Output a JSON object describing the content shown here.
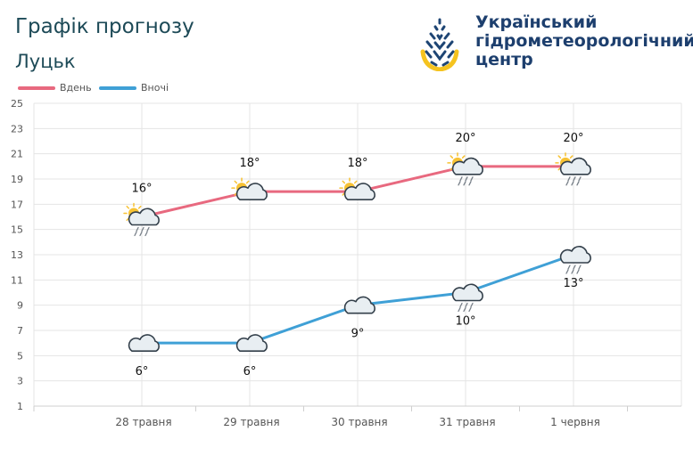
{
  "header": {
    "title": "Графік прогнозу",
    "city": "Луцьк"
  },
  "logo": {
    "line1": "Український",
    "line2": "гідрометеорологічний",
    "line3": "центр"
  },
  "colors": {
    "day": "#e8697f",
    "night": "#3fa0d6",
    "title": "#1d4a57",
    "logo_text": "#1d3f6e",
    "logo_yellow": "#f5c31f",
    "logo_blue": "#1e4574",
    "grid": "#e4e4e4",
    "axis_text": "#555555",
    "sun": "#f7c233",
    "cloud_fill": "#e8eef2",
    "cloud_stroke": "#333f4a",
    "rain": "#777f88"
  },
  "chart_data": {
    "type": "line",
    "categories": [
      "28 травня",
      "29 травня",
      "30 травня",
      "31 травня",
      "1 червня"
    ],
    "ylim": [
      1,
      25
    ],
    "yticks": [
      1,
      3,
      5,
      7,
      9,
      11,
      13,
      15,
      17,
      19,
      21,
      23,
      25
    ],
    "grid": true,
    "legend_position": "top-left",
    "series": [
      {
        "name": "Вдень",
        "values": [
          16,
          18,
          18,
          20,
          20
        ],
        "labels": [
          "16°",
          "18°",
          "18°",
          "20°",
          "20°"
        ],
        "icons": [
          "sun-cloud-rain-icon",
          "sun-cloud-icon",
          "sun-cloud-icon",
          "sun-cloud-rain-icon",
          "sun-cloud-rain-icon"
        ]
      },
      {
        "name": "Вночі",
        "values": [
          6,
          6,
          9,
          10,
          13
        ],
        "labels": [
          "6°",
          "6°",
          "9°",
          "10°",
          "13°"
        ],
        "icons": [
          "moon-cloud-icon",
          "moon-cloud-icon",
          "moon-cloud-icon",
          "moon-cloud-rain-icon",
          "moon-cloud-rain-icon"
        ]
      }
    ]
  }
}
